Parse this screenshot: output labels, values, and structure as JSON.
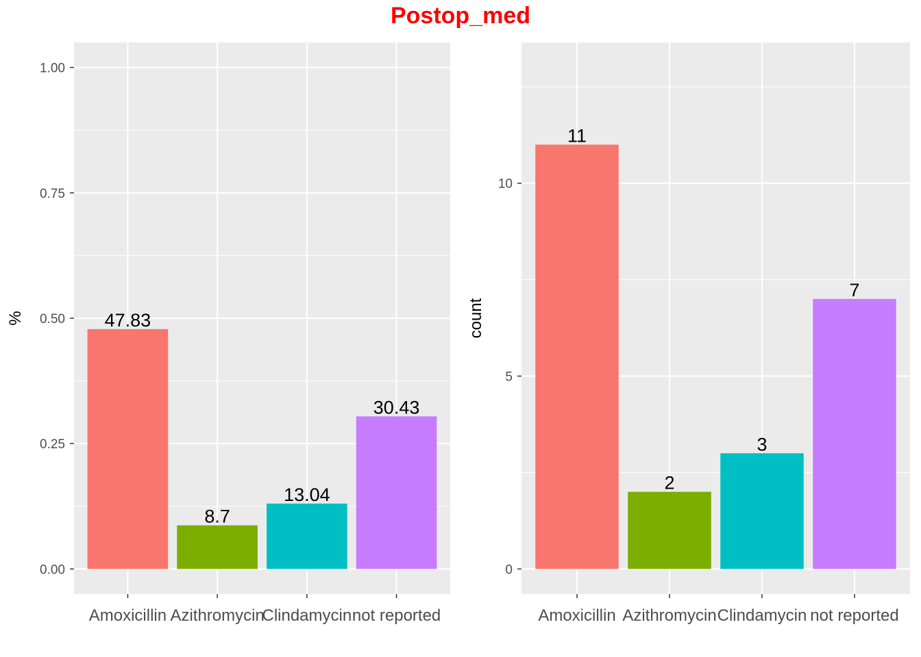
{
  "title": "Postop_med",
  "colors": {
    "panel_bg": "#ebebeb",
    "grid": "#ffffff",
    "tick": "#333333",
    "title": "#ff0000",
    "bars": [
      "#f8766d",
      "#7cae00",
      "#00bfc4",
      "#c77cff"
    ]
  },
  "chart_data": [
    {
      "type": "bar",
      "categories": [
        "Amoxicillin",
        "Azithromycin",
        "Clindamycin",
        "not reported"
      ],
      "values": [
        0.4783,
        0.087,
        0.1304,
        0.3043
      ],
      "labels": [
        "47.83",
        "8.7",
        "13.04",
        "30.43"
      ],
      "xlabel": "",
      "ylabel": "%",
      "ylim": [
        -0.05,
        1.05
      ],
      "yticks": [
        0,
        0.25,
        0.5,
        0.75,
        1.0
      ],
      "ytick_labels": [
        "0.00",
        "0.25",
        "0.50",
        "0.75",
        "1.00"
      ],
      "grid": true,
      "legend": "none"
    },
    {
      "type": "bar",
      "categories": [
        "Amoxicillin",
        "Azithromycin",
        "Clindamycin",
        "not reported"
      ],
      "values": [
        11,
        2,
        3,
        7
      ],
      "labels": [
        "11",
        "2",
        "3",
        "7"
      ],
      "xlabel": "",
      "ylabel": "count",
      "ylim": [
        -0.65,
        13.65
      ],
      "yticks": [
        0,
        5,
        10
      ],
      "ytick_labels": [
        "0",
        "5",
        "10"
      ],
      "grid": true,
      "legend": "none"
    }
  ]
}
